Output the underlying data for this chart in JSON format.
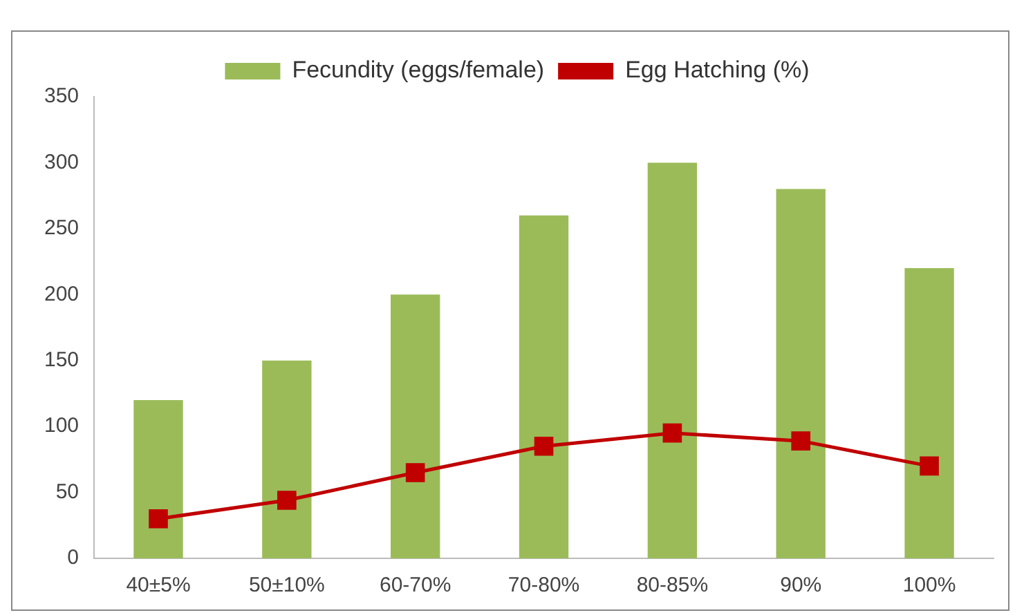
{
  "chart_data": {
    "type": "bar",
    "categories": [
      "40±5%",
      "50±10%",
      "60-70%",
      "70-80%",
      "80-85%",
      "90%",
      "100%"
    ],
    "series": [
      {
        "name": "Fecundity (eggs/female)",
        "color": "#9bbb59",
        "values": [
          120,
          150,
          200,
          260,
          300,
          280,
          220
        ]
      },
      {
        "name": "Egg Hatching (%)",
        "type": "line",
        "color": "#c00000",
        "values": [
          30,
          44,
          65,
          85,
          95,
          89,
          70
        ]
      }
    ],
    "ylim": [
      0,
      350
    ],
    "yticks": [
      0,
      50,
      100,
      150,
      200,
      250,
      300,
      350
    ],
    "grid": false,
    "legend": "top",
    "marker": "square"
  }
}
